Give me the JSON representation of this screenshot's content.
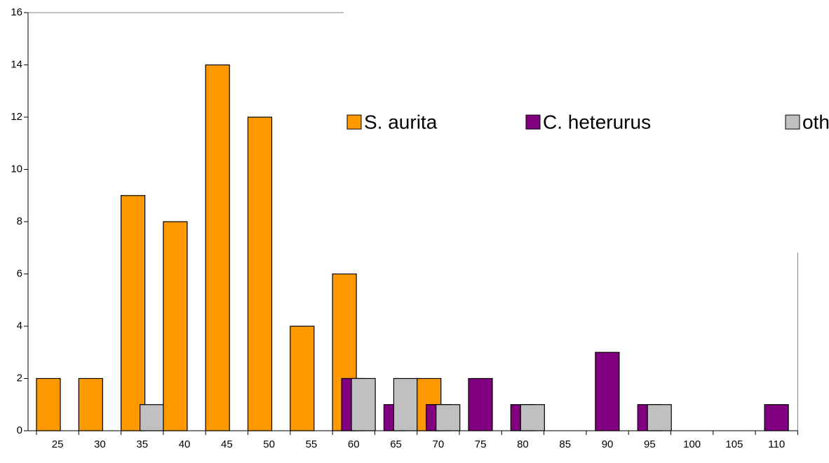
{
  "chart_data": {
    "type": "bar",
    "categories": [
      "25",
      "30",
      "35",
      "40",
      "45",
      "50",
      "55",
      "60",
      "65",
      "70",
      "75",
      "80",
      "85",
      "90",
      "95",
      "100",
      "105",
      "110"
    ],
    "series": [
      {
        "name": "S. aurita",
        "color": "#ff9900",
        "values": [
          2,
          2,
          9,
          8,
          14,
          12,
          4,
          6,
          0,
          2,
          0,
          0,
          0,
          0,
          0,
          0,
          0,
          0
        ]
      },
      {
        "name": "C. heterurus",
        "color": "#800080",
        "values": [
          0,
          0,
          0,
          0,
          0,
          0,
          0,
          2,
          1,
          1,
          2,
          1,
          0,
          3,
          1,
          0,
          0,
          1
        ]
      },
      {
        "name": "others",
        "color": "#c0c0c0",
        "values": [
          0,
          0,
          1,
          0,
          0,
          0,
          0,
          2,
          2,
          1,
          0,
          1,
          0,
          0,
          1,
          0,
          0,
          0
        ]
      }
    ],
    "ylim": [
      0,
      16
    ],
    "yticks": [
      0,
      2,
      4,
      6,
      8,
      10,
      12,
      14,
      16
    ],
    "legend": "right"
  }
}
